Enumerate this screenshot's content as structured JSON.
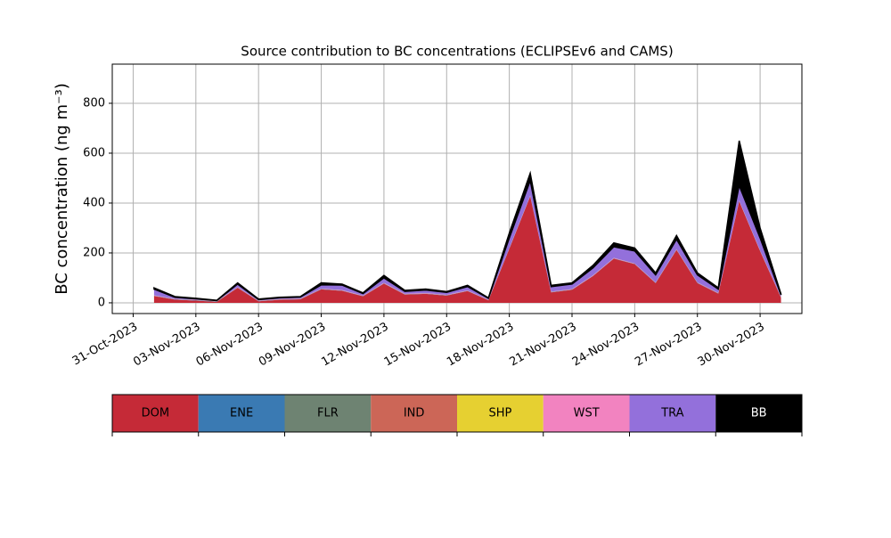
{
  "chart_data": {
    "type": "stacked_area",
    "title": "Source contribution to BC concentrations (ECLIPSEv6 and CAMS)",
    "ylabel": "BC concentration (ng m⁻³)",
    "x": [
      "2023-11-01",
      "2023-11-02",
      "2023-11-03",
      "2023-11-04",
      "2023-11-05",
      "2023-11-06",
      "2023-11-07",
      "2023-11-08",
      "2023-11-09",
      "2023-11-10",
      "2023-11-11",
      "2023-11-12",
      "2023-11-13",
      "2023-11-14",
      "2023-11-15",
      "2023-11-16",
      "2023-11-17",
      "2023-11-18",
      "2023-11-19",
      "2023-11-20",
      "2023-11-21",
      "2023-11-22",
      "2023-11-23",
      "2023-11-24",
      "2023-11-25",
      "2023-11-26",
      "2023-11-27",
      "2023-11-28",
      "2023-11-29",
      "2023-11-30",
      "2023-12-01"
    ],
    "series": [
      {
        "name": "DOM",
        "color": "#c52a37",
        "values": [
          27,
          13,
          9,
          4,
          60,
          6,
          12,
          14,
          54,
          48,
          26,
          77,
          33,
          36,
          29,
          47,
          10,
          217,
          427,
          42,
          52,
          107,
          177,
          155,
          79,
          212,
          79,
          37,
          407,
          207,
          21
        ]
      },
      {
        "name": "ENE",
        "color": "#3a7ab3",
        "values": [
          1,
          1,
          1,
          1,
          1,
          1,
          1,
          1,
          1,
          1,
          1,
          1,
          1,
          1,
          1,
          1,
          1,
          1,
          1,
          1,
          1,
          1,
          1,
          1,
          1,
          1,
          1,
          1,
          1,
          1,
          1
        ]
      },
      {
        "name": "FLR",
        "color": "#6e8372",
        "values": [
          0,
          0,
          0,
          0,
          0,
          0,
          0,
          0,
          0,
          0,
          0,
          0,
          0,
          0,
          0,
          0,
          0,
          0,
          0,
          0,
          0,
          0,
          0,
          0,
          0,
          0,
          0,
          0,
          0,
          0,
          0
        ]
      },
      {
        "name": "IND",
        "color": "#cc6657",
        "values": [
          1,
          1,
          1,
          1,
          1,
          1,
          1,
          1,
          1,
          1,
          1,
          1,
          1,
          1,
          1,
          1,
          1,
          1,
          1,
          1,
          1,
          1,
          1,
          1,
          1,
          1,
          1,
          1,
          1,
          1,
          1
        ]
      },
      {
        "name": "SHP",
        "color": "#e6d031",
        "values": [
          0,
          0,
          0,
          0,
          0,
          0,
          0,
          0,
          0,
          0,
          0,
          0,
          0,
          0,
          0,
          0,
          0,
          0,
          0,
          0,
          0,
          0,
          0,
          0,
          0,
          0,
          0,
          0,
          0,
          0,
          0
        ]
      },
      {
        "name": "WST",
        "color": "#f283c0",
        "values": [
          1,
          1,
          1,
          1,
          1,
          1,
          1,
          1,
          1,
          1,
          1,
          1,
          1,
          1,
          1,
          1,
          1,
          1,
          1,
          1,
          1,
          1,
          1,
          1,
          1,
          1,
          1,
          1,
          1,
          1,
          1
        ]
      },
      {
        "name": "TRA",
        "color": "#9370db",
        "values": [
          25,
          6,
          4,
          2,
          12,
          4,
          5,
          6,
          15,
          20,
          8,
          20,
          10,
          12,
          10,
          15,
          5,
          40,
          60,
          20,
          20,
          30,
          45,
          50,
          30,
          40,
          30,
          15,
          60,
          50,
          8
        ]
      },
      {
        "name": "BB",
        "color": "#000000",
        "values": [
          5,
          3,
          2,
          1,
          5,
          2,
          2,
          2,
          8,
          4,
          3,
          10,
          4,
          4,
          3,
          5,
          2,
          20,
          30,
          5,
          5,
          10,
          15,
          12,
          8,
          15,
          8,
          5,
          180,
          40,
          3
        ]
      }
    ],
    "xlim": [
      "2023-10-30",
      "2023-12-02"
    ],
    "xticks": [
      {
        "value": "2023-10-31",
        "label": "31-Oct-2023"
      },
      {
        "value": "2023-11-03",
        "label": "03-Nov-2023"
      },
      {
        "value": "2023-11-06",
        "label": "06-Nov-2023"
      },
      {
        "value": "2023-11-09",
        "label": "09-Nov-2023"
      },
      {
        "value": "2023-11-12",
        "label": "12-Nov-2023"
      },
      {
        "value": "2023-11-15",
        "label": "15-Nov-2023"
      },
      {
        "value": "2023-11-18",
        "label": "18-Nov-2023"
      },
      {
        "value": "2023-11-21",
        "label": "21-Nov-2023"
      },
      {
        "value": "2023-11-24",
        "label": "24-Nov-2023"
      },
      {
        "value": "2023-11-27",
        "label": "27-Nov-2023"
      },
      {
        "value": "2023-11-30",
        "label": "30-Nov-2023"
      }
    ],
    "ylim": [
      -43,
      957
    ],
    "yticks": [
      0,
      200,
      400,
      600,
      800
    ],
    "grid": true
  }
}
